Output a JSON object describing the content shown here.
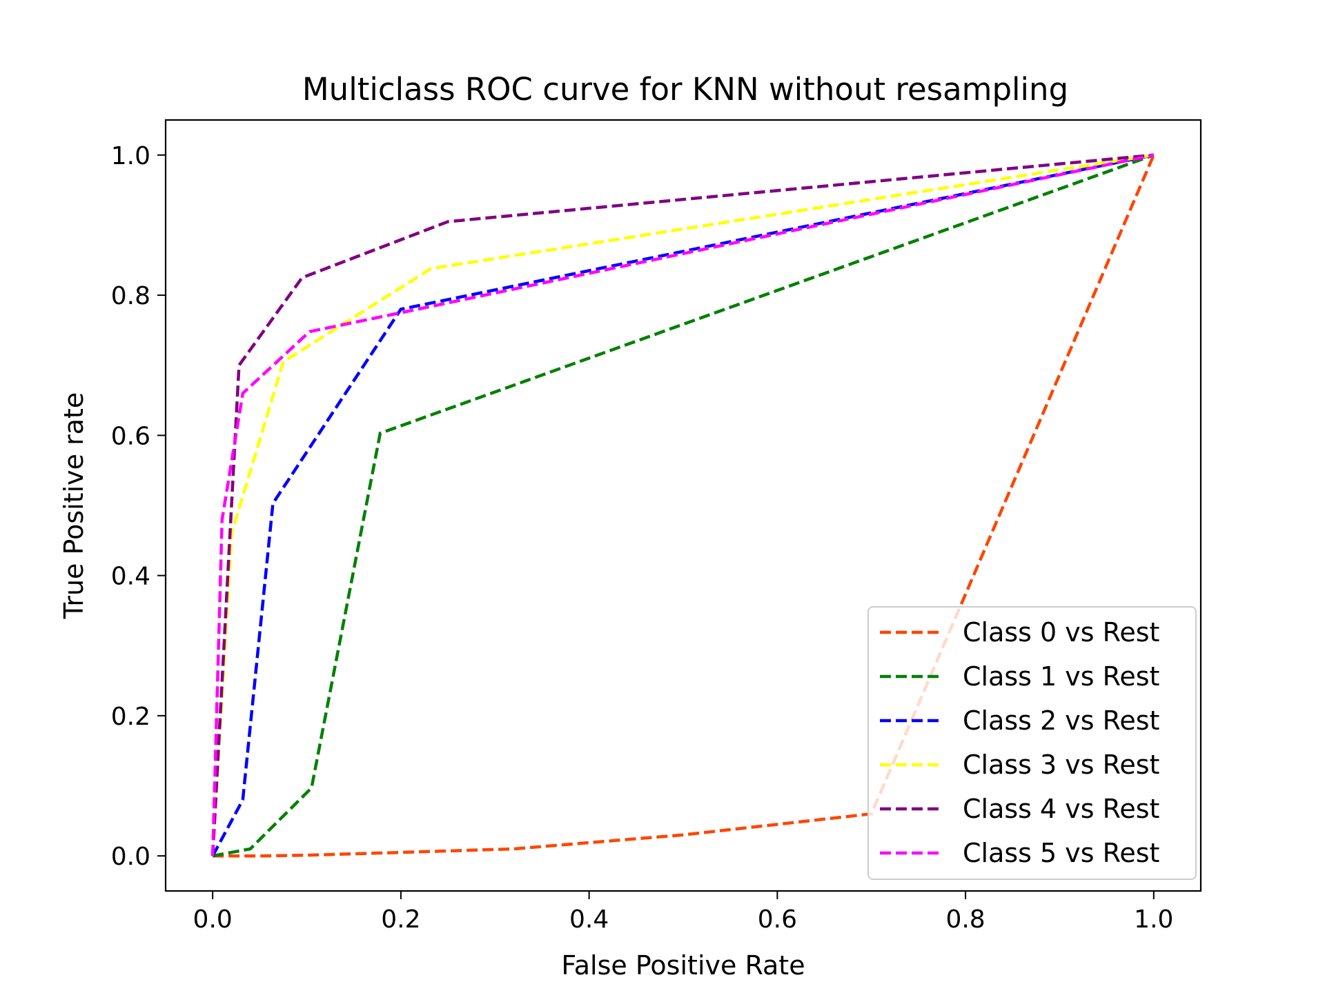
{
  "chart_data": {
    "type": "line",
    "title": "Multiclass ROC curve for KNN without resampling",
    "xlabel": "False Positive Rate",
    "ylabel": "True Positive rate",
    "xlim": [
      -0.05,
      1.05
    ],
    "ylim": [
      -0.05,
      1.05
    ],
    "xticks": [
      0.0,
      0.2,
      0.4,
      0.6,
      0.8,
      1.0
    ],
    "xtick_labels": [
      "0.0",
      "0.2",
      "0.4",
      "0.6",
      "0.8",
      "1.0"
    ],
    "yticks": [
      0.0,
      0.2,
      0.4,
      0.6,
      0.8,
      1.0
    ],
    "ytick_labels": [
      "0.0",
      "0.2",
      "0.4",
      "0.6",
      "0.8",
      "1.0"
    ],
    "grid": false,
    "legend_position": "lower right",
    "line_style": "dashed",
    "series": [
      {
        "name": "Class 0 vs Rest",
        "color": "#ff4500",
        "x": [
          0.0,
          0.05,
          0.1,
          0.2,
          0.32,
          0.5,
          0.7,
          1.0
        ],
        "y": [
          0.0,
          0.0,
          0.001,
          0.005,
          0.01,
          0.03,
          0.06,
          1.0
        ]
      },
      {
        "name": "Class 1 vs Rest",
        "color": "#008000",
        "x": [
          0.0,
          0.04,
          0.105,
          0.178,
          1.0
        ],
        "y": [
          0.0,
          0.01,
          0.097,
          0.603,
          1.0
        ]
      },
      {
        "name": "Class 2 vs Rest",
        "color": "#0000ff",
        "x": [
          0.0,
          0.032,
          0.064,
          0.2,
          1.0
        ],
        "y": [
          0.0,
          0.08,
          0.503,
          0.78,
          1.0
        ]
      },
      {
        "name": "Class 3 vs Rest",
        "color": "#ffff00",
        "x": [
          0.0,
          0.02,
          0.075,
          0.232,
          1.0
        ],
        "y": [
          0.0,
          0.46,
          0.705,
          0.838,
          1.0
        ]
      },
      {
        "name": "Class 4 vs Rest",
        "color": "#800080",
        "x": [
          0.0,
          0.028,
          0.095,
          0.25,
          1.0
        ],
        "y": [
          0.0,
          0.7,
          0.825,
          0.905,
          1.0
        ]
      },
      {
        "name": "Class 5 vs Rest",
        "color": "#ff00ff",
        "x": [
          0.0,
          0.01,
          0.032,
          0.103,
          0.2,
          1.0
        ],
        "y": [
          0.0,
          0.48,
          0.66,
          0.748,
          0.775,
          1.0
        ]
      }
    ]
  }
}
